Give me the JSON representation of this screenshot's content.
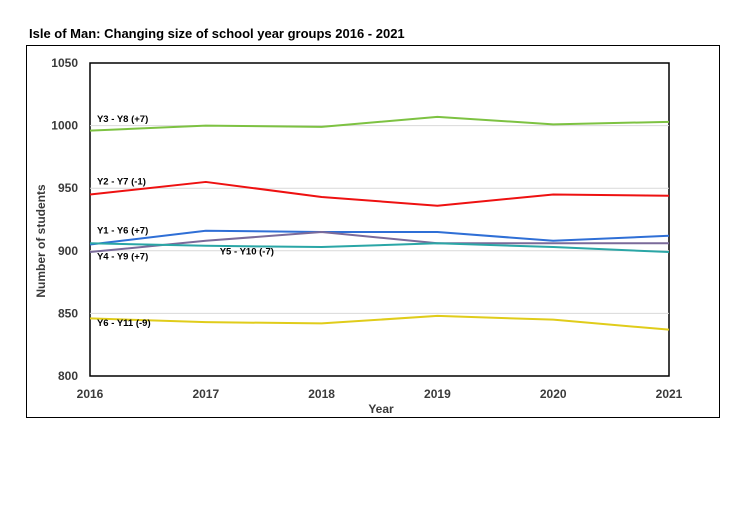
{
  "chart_data": {
    "type": "line",
    "title": "Isle of Man: Changing size of school year groups 2016 - 2021",
    "xlabel": "Year",
    "ylabel": "Number of students",
    "x": [
      2016,
      2017,
      2018,
      2019,
      2020,
      2021
    ],
    "ylim": [
      800,
      1050
    ],
    "yticks": [
      800,
      850,
      900,
      950,
      1000,
      1050
    ],
    "grid": true,
    "series": [
      {
        "name": "Y3 - Y8 (+7)",
        "color": "#7dc242",
        "values": [
          996,
          1000,
          999,
          1007,
          1001,
          1003
        ]
      },
      {
        "name": "Y2 - Y7 (-1)",
        "color": "#ee1111",
        "values": [
          945,
          955,
          943,
          936,
          945,
          944
        ]
      },
      {
        "name": "Y1 - Y6 (+7)",
        "color": "#2f6fd6",
        "values": [
          905,
          916,
          915,
          915,
          908,
          912
        ]
      },
      {
        "name": "Y4 - Y9 (+7)",
        "color": "#7a6a9a",
        "values": [
          899,
          908,
          915,
          906,
          906,
          906
        ]
      },
      {
        "name": "Y5 - Y10 (-7)",
        "color": "#2aa6a6",
        "values": [
          906,
          904,
          903,
          906,
          903,
          899
        ]
      },
      {
        "name": "Y6 - Y11 (-9)",
        "color": "#e0cc1a",
        "values": [
          846,
          843,
          842,
          848,
          845,
          837
        ]
      }
    ]
  }
}
